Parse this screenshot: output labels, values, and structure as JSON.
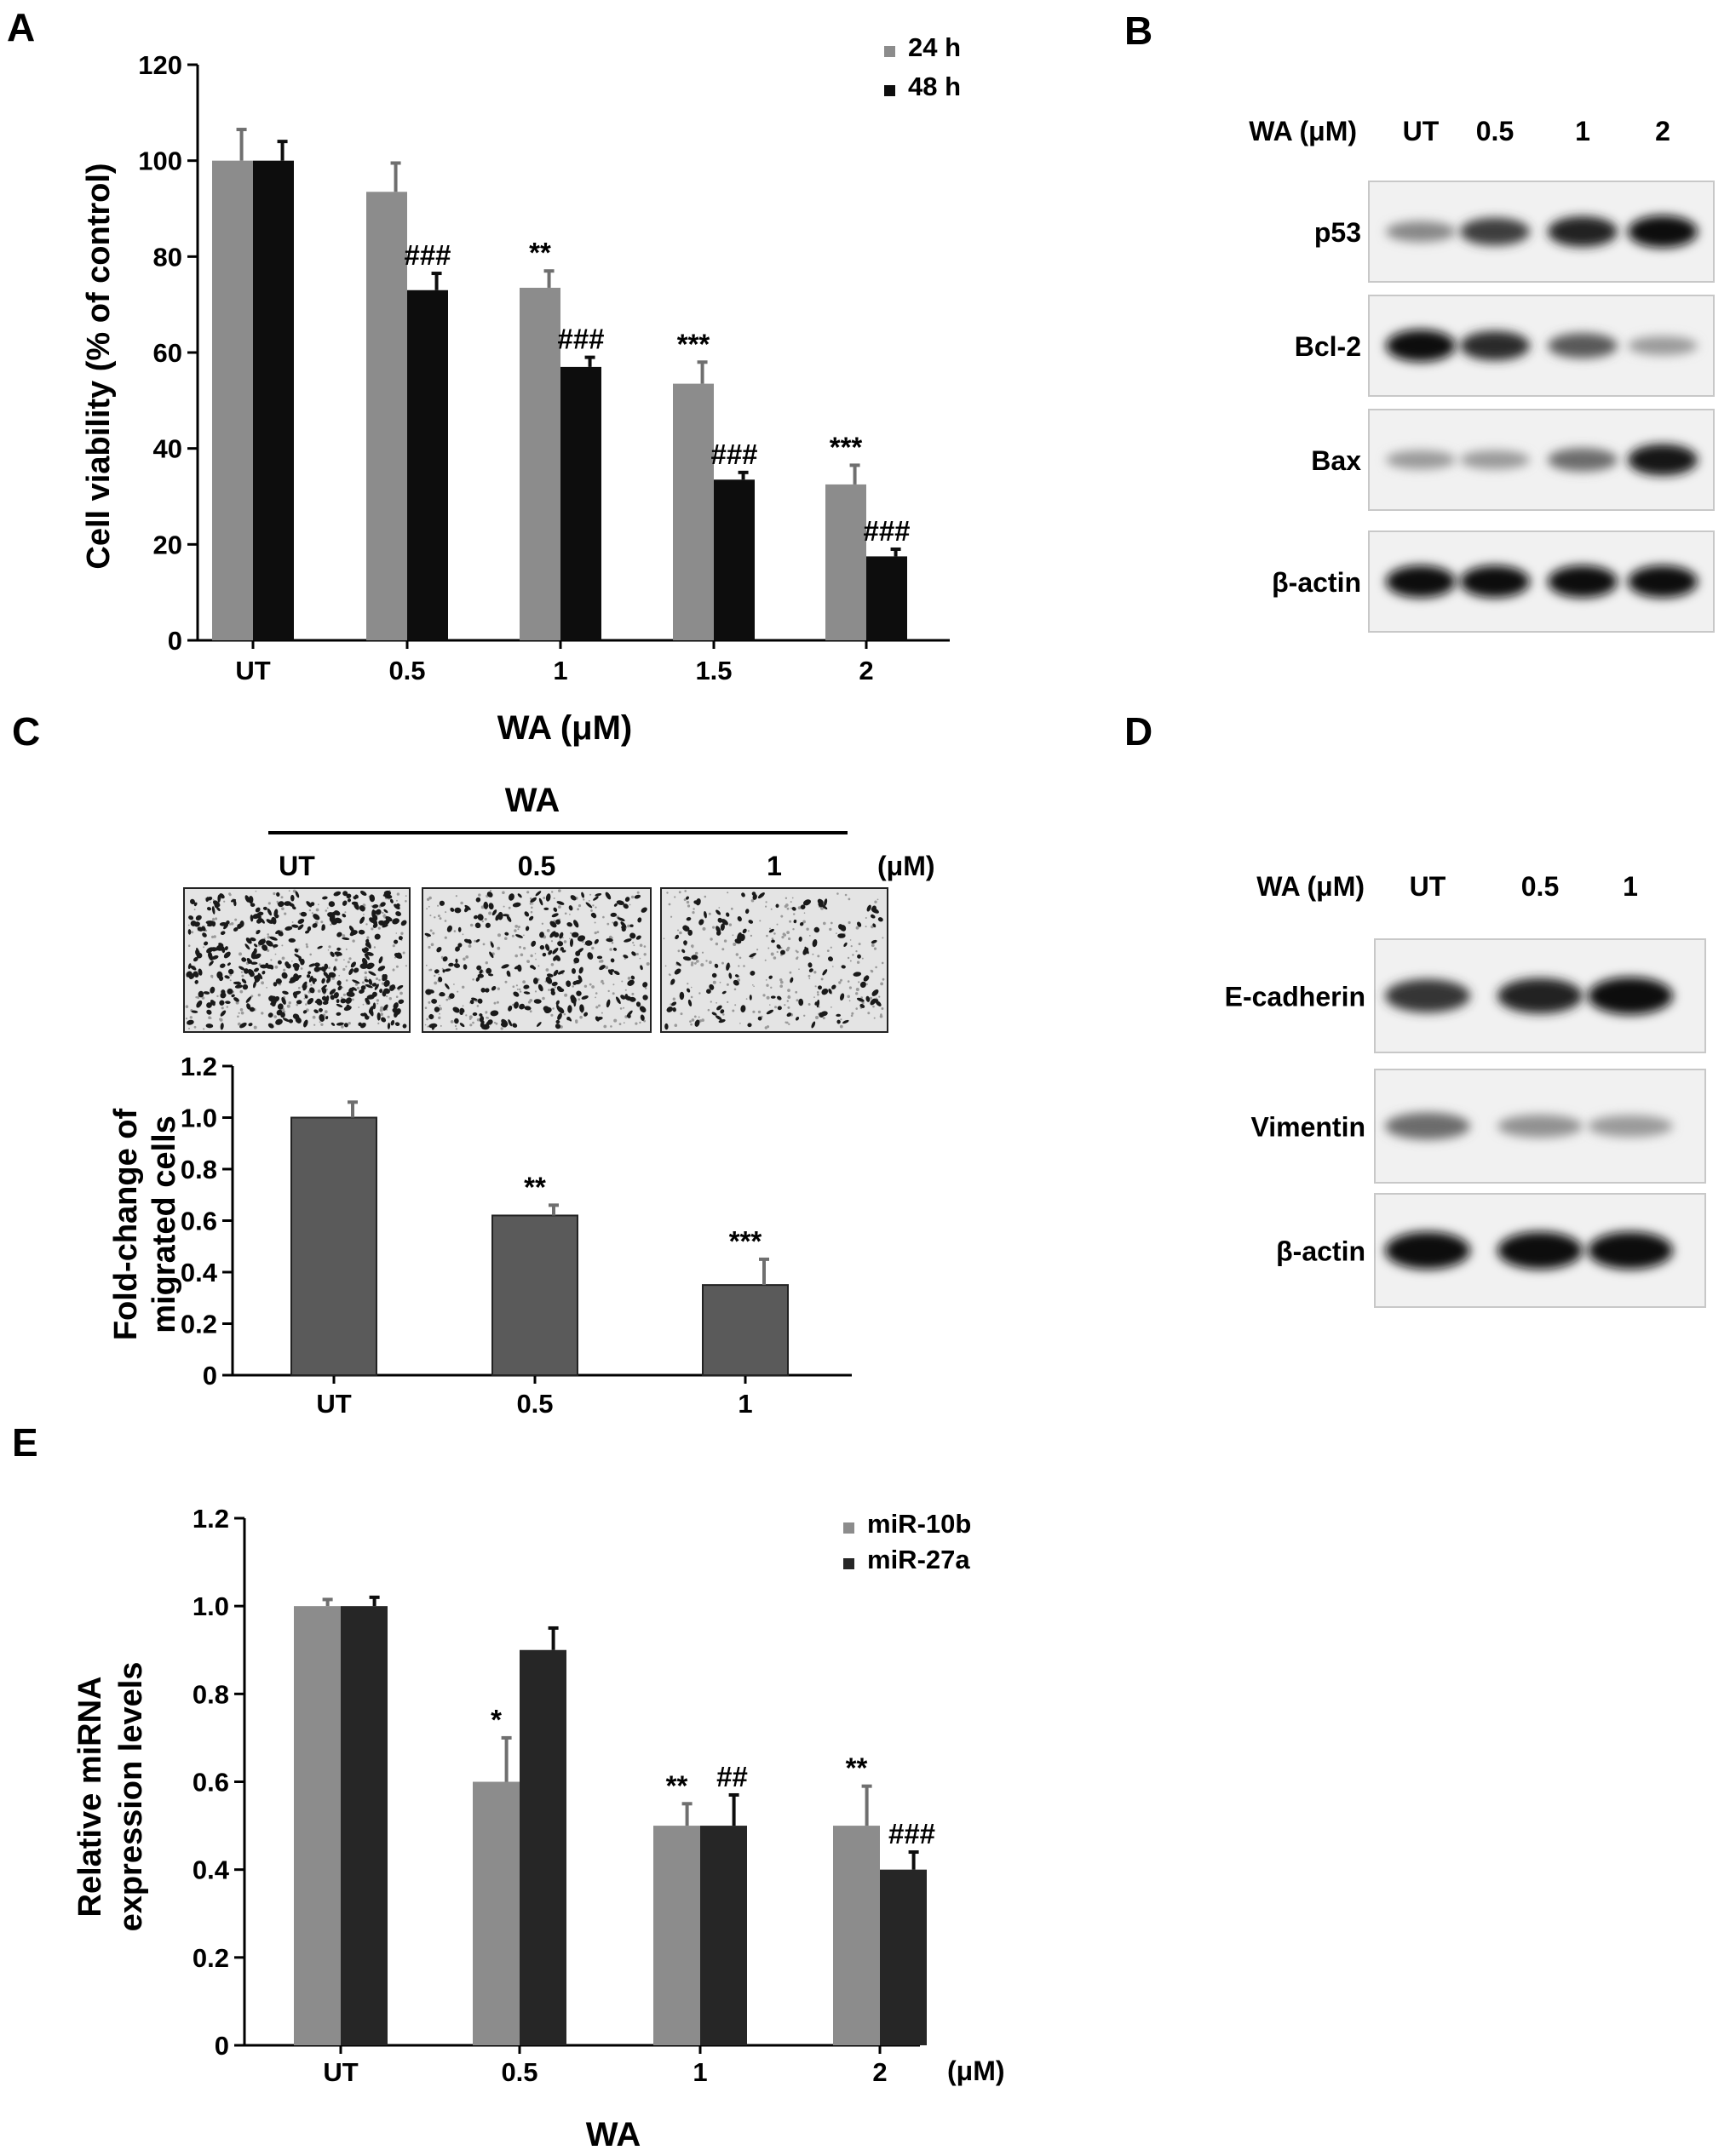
{
  "panels": {
    "A": {
      "letter": "A"
    },
    "B": {
      "letter": "B"
    },
    "C": {
      "letter": "C"
    },
    "D": {
      "letter": "D"
    },
    "E": {
      "letter": "E"
    }
  },
  "chart_data": [
    {
      "panel": "A",
      "type": "bar",
      "categories": [
        "UT",
        "0.5",
        "1",
        "1.5",
        "2"
      ],
      "series": [
        {
          "name": "24 h",
          "values": [
            100,
            93.5,
            73.5,
            53.5,
            32.5
          ],
          "error": [
            6.5,
            6,
            3.5,
            4.5,
            4
          ],
          "annotations": [
            "",
            "",
            "**",
            "***",
            "***"
          ],
          "color": "#8c8c8c"
        },
        {
          "name": "48 h",
          "values": [
            100,
            73,
            57,
            33.5,
            17.5
          ],
          "error": [
            4,
            3.5,
            2,
            1.5,
            1.5
          ],
          "annotations": [
            "",
            "###",
            "###",
            "###",
            "###"
          ],
          "color": "#0d0d0d"
        }
      ],
      "ylabel": "Cell viability (% of control)",
      "xlabel": "WA (μM)",
      "ylim": [
        0,
        120
      ],
      "yticks": [
        "0",
        "20",
        "40",
        "60",
        "80",
        "100",
        "120"
      ],
      "legend_position": "top-right"
    },
    {
      "panel": "C",
      "type": "bar",
      "categories": [
        "UT",
        "0.5",
        "1"
      ],
      "series": [
        {
          "values": [
            1.0,
            0.62,
            0.35
          ],
          "error": [
            0.06,
            0.04,
            0.1
          ],
          "annotations": [
            "",
            "**",
            "***"
          ],
          "color": "#5a5a5a"
        }
      ],
      "ylabel_lines": [
        "Fold-change of",
        "migrated cells"
      ],
      "ylim": [
        0,
        1.2
      ],
      "yticks": [
        "0",
        "0.2",
        "0.4",
        "0.6",
        "0.8",
        "1.0",
        "1.2"
      ]
    },
    {
      "panel": "E",
      "type": "bar",
      "categories": [
        "UT",
        "0.5",
        "1",
        "2"
      ],
      "series": [
        {
          "name": "miR-10b",
          "values": [
            1.0,
            0.6,
            0.5,
            0.5
          ],
          "error": [
            0.015,
            0.1,
            0.05,
            0.09
          ],
          "annotations": [
            "",
            "*",
            "**",
            "**"
          ],
          "color": "#8c8c8c"
        },
        {
          "name": "miR-27a",
          "values": [
            1.0,
            0.9,
            0.5,
            0.4
          ],
          "error": [
            0.02,
            0.05,
            0.07,
            0.04
          ],
          "annotations": [
            "",
            "",
            "##",
            "###"
          ],
          "color": "#262626"
        }
      ],
      "ylabel_lines": [
        "Relative miRNA",
        "expression levels"
      ],
      "xlabel": "WA",
      "x_unit": "(μM)",
      "ylim": [
        0,
        1.2
      ],
      "yticks": [
        "0",
        "0.2",
        "0.4",
        "0.6",
        "0.8",
        "1.0",
        "1.2"
      ],
      "legend_position": "top-right"
    }
  ],
  "western_B": {
    "header_label": "WA (μM)",
    "lanes": [
      "UT",
      "0.5",
      "1",
      "2"
    ],
    "blots": [
      {
        "label": "p53",
        "band_intensity": [
          0.35,
          0.75,
          0.9,
          1.0
        ]
      },
      {
        "label": "Bcl-2",
        "band_intensity": [
          1.0,
          0.85,
          0.6,
          0.25
        ]
      },
      {
        "label": "Bax",
        "band_intensity": [
          0.25,
          0.25,
          0.5,
          0.95
        ]
      },
      {
        "label": "β-actin",
        "band_intensity": [
          1.0,
          1.0,
          1.0,
          1.0
        ]
      }
    ]
  },
  "western_D": {
    "header_label": "WA (μM)",
    "lanes": [
      "UT",
      "0.5",
      "1"
    ],
    "blots": [
      {
        "label": "E-cadherin",
        "band_intensity": [
          0.8,
          0.9,
          1.0
        ]
      },
      {
        "label": "Vimentin",
        "band_intensity": [
          0.5,
          0.3,
          0.25
        ]
      },
      {
        "label": "β-actin",
        "band_intensity": [
          1.0,
          1.0,
          1.0
        ]
      }
    ]
  },
  "migration_C": {
    "treatment": "WA",
    "conditions": [
      "UT",
      "0.5",
      "1"
    ],
    "unit": "(μM)",
    "cell_density": [
      1.0,
      0.6,
      0.35
    ]
  }
}
